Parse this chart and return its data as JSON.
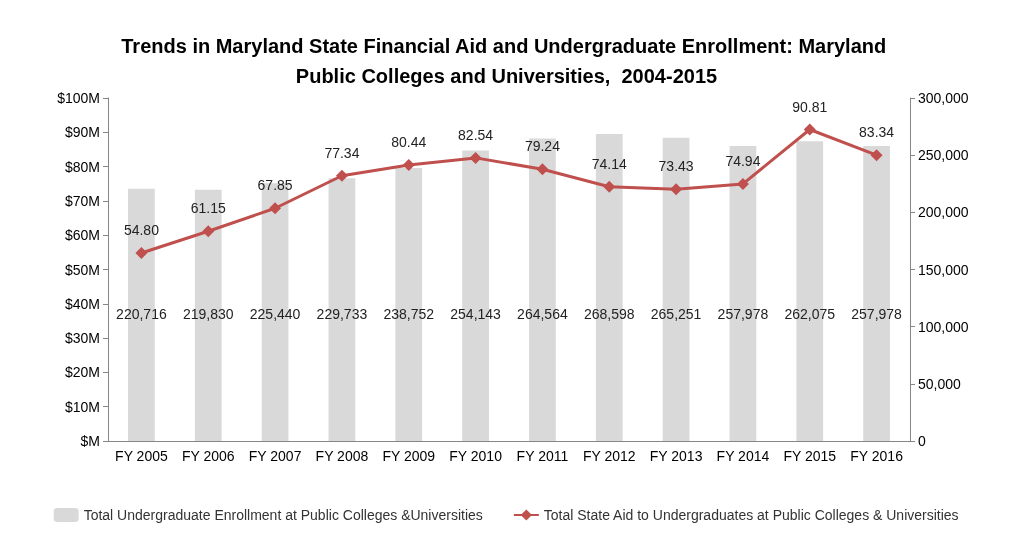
{
  "chart_data": {
    "type": "bar",
    "title": "Trends in Maryland State Financial Aid and Undergraduate Enrollment: Maryland Public Colleges and Universities,  2004-2015",
    "categories": [
      "FY 2005",
      "FY 2006",
      "FY 2007",
      "FY 2008",
      "FY 2009",
      "FY 2010",
      "FY 2011",
      "FY 2012",
      "FY 2013",
      "FY 2014",
      "FY 2015",
      "FY 2016"
    ],
    "series": [
      {
        "name": "Total Undergraduate Enrollment at Public Colleges &Universities",
        "axis": "y2",
        "color": "#d9d9d9",
        "values": [
          220716,
          219830,
          225440,
          229733,
          238752,
          254143,
          264564,
          268598,
          265251,
          257978,
          262075,
          257978
        ],
        "value_labels": [
          "220,716",
          "219,830",
          "225,440",
          "229,733",
          "238,752",
          "254,143",
          "264,564",
          "268,598",
          "265,251",
          "257,978",
          "262,075",
          "257,978"
        ]
      },
      {
        "name": "Total State Aid to Undergraduates at Public Colleges & Universities",
        "type": "line",
        "axis": "y",
        "color": "#c0504d",
        "marker": "diamond",
        "values": [
          54.8,
          61.15,
          67.85,
          77.34,
          80.44,
          82.54,
          79.24,
          74.14,
          73.43,
          74.94,
          90.81,
          83.34
        ],
        "value_labels": [
          "54.80",
          "61.15",
          "67.85",
          "77.34",
          "80.44",
          "82.54",
          "79.24",
          "74.14",
          "73.43",
          "74.94",
          "90.81",
          "83.34"
        ]
      }
    ],
    "ylim": [
      0,
      100
    ],
    "yticks": [
      {
        "value": 0,
        "label": "$M"
      },
      {
        "value": 10,
        "label": "$10M"
      },
      {
        "value": 20,
        "label": "$20M"
      },
      {
        "value": 30,
        "label": "$30M"
      },
      {
        "value": 40,
        "label": "$40M"
      },
      {
        "value": 50,
        "label": "$50M"
      },
      {
        "value": 60,
        "label": "$60M"
      },
      {
        "value": 70,
        "label": "$70M"
      },
      {
        "value": 80,
        "label": "$80M"
      },
      {
        "value": 90,
        "label": "$90M"
      },
      {
        "value": 100,
        "label": "$100M"
      }
    ],
    "y2lim": [
      0,
      300000
    ],
    "y2ticks": [
      0,
      {
        "value": 50000,
        "label": "50,000"
      },
      {
        "value": 100000,
        "label": "100,000"
      },
      {
        "value": 150000,
        "label": "150,000"
      },
      {
        "value": 200000,
        "label": "200,000"
      },
      {
        "value": 250000,
        "label": "250,000"
      },
      {
        "value": 300000,
        "label": "300,000"
      }
    ],
    "grid": false,
    "legend": "bottom"
  }
}
